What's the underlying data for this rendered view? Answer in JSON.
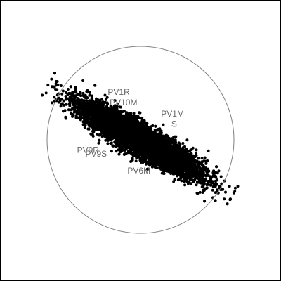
{
  "chart_data": {
    "type": "scatter",
    "title": "",
    "xlabel": "",
    "ylabel": "",
    "xlim": [
      -1.0,
      1.0
    ],
    "ylim": [
      -1.0,
      1.0
    ],
    "grid": false,
    "legend": "none",
    "colors": {
      "points": "#000000",
      "circle": "#808080",
      "labels": "#666666",
      "frame": "#000000"
    },
    "unit_circle": {
      "center": [
        0.0,
        0.0
      ],
      "radius": 1.0
    },
    "cloud": {
      "description_only_for_rendering": false,
      "n_points": 9000,
      "center": [
        0.0,
        0.0
      ],
      "direction": [
        0.866,
        -0.5
      ],
      "axis_sd": [
        0.36,
        0.075
      ],
      "axis_max": [
        1.15,
        0.26
      ]
    },
    "variable_labels": [
      {
        "label": "PV1R",
        "x": -0.35,
        "y": 0.48
      },
      {
        "label": "PV10M",
        "x": -0.33,
        "y": 0.37
      },
      {
        "label": "PV1M",
        "x": 0.22,
        "y": 0.25
      },
      {
        "label": "S",
        "x": 0.33,
        "y": 0.14
      },
      {
        "label": "PV9R",
        "x": -0.68,
        "y": -0.14
      },
      {
        "label": "PV9S",
        "x": -0.59,
        "y": -0.18
      },
      {
        "label": "PV6M",
        "x": -0.14,
        "y": -0.36
      }
    ]
  }
}
